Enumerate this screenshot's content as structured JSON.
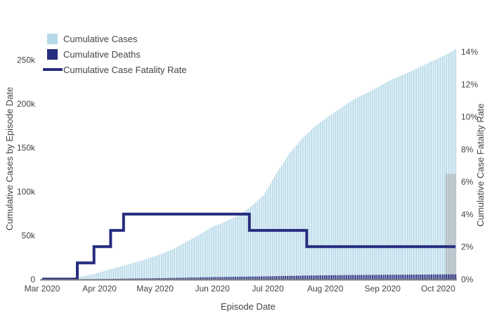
{
  "legend": {
    "items": [
      {
        "label": "Cumulative Cases",
        "swatch": "square",
        "color": "#B6D9E8"
      },
      {
        "label": "Cumulative Deaths",
        "swatch": "square",
        "color": "#262C7E"
      },
      {
        "label": "Cumulative Case Fatality Rate",
        "swatch": "line",
        "color": "#262C7E"
      }
    ]
  },
  "colors": {
    "cases_bar": "#B6D9E8",
    "deaths_bar": "#262C7E",
    "cfr_line": "#262C7E",
    "incomplete_bar": "#ACACAC",
    "axis_line": "#7F7F7F",
    "text": "#444444"
  },
  "chart_data": {
    "type": "bar",
    "title": "",
    "x_axis": {
      "title": "Episode Date",
      "tick_labels": [
        "Mar 2020",
        "Apr 2020",
        "May 2020",
        "Jun 2020",
        "Jul 2020",
        "Aug 2020",
        "Sep 2020",
        "Oct 2020"
      ],
      "tick_dates": [
        "2020-03-01",
        "2020-04-01",
        "2020-05-01",
        "2020-06-01",
        "2020-07-01",
        "2020-08-01",
        "2020-09-01",
        "2020-10-01"
      ],
      "start_date": "2020-03-01",
      "end_date": "2020-10-10",
      "grid": false
    },
    "y_axis_left": {
      "title": "Cumulative Cases by Episode Date",
      "tick_labels": [
        "0",
        "50k",
        "100k",
        "150k",
        "200k",
        "250k"
      ],
      "tick_values": [
        0,
        50000,
        100000,
        150000,
        200000,
        250000
      ],
      "range": [
        0,
        274000
      ]
    },
    "y_axis_right": {
      "title": "Cumulative Case Fatality Rate",
      "tick_labels": [
        "0%",
        "2%",
        "4%",
        "6%",
        "8%",
        "10%",
        "12%",
        "14%"
      ],
      "tick_values": [
        0,
        2,
        4,
        6,
        8,
        10,
        12,
        14
      ],
      "range": [
        0,
        14.8
      ]
    },
    "series": [
      {
        "name": "Cumulative Cases",
        "type": "bar",
        "axis": "left",
        "color": "#B6D9E8",
        "points": [
          [
            "2020-03-01",
            100
          ],
          [
            "2020-03-08",
            400
          ],
          [
            "2020-03-15",
            1200
          ],
          [
            "2020-03-22",
            3200
          ],
          [
            "2020-03-29",
            6000
          ],
          [
            "2020-04-05",
            10500
          ],
          [
            "2020-04-12",
            14500
          ],
          [
            "2020-04-19",
            18500
          ],
          [
            "2020-04-26",
            23000
          ],
          [
            "2020-05-03",
            28000
          ],
          [
            "2020-05-10",
            34000
          ],
          [
            "2020-05-17",
            42000
          ],
          [
            "2020-05-24",
            50000
          ],
          [
            "2020-05-31",
            59000
          ],
          [
            "2020-06-07",
            65000
          ],
          [
            "2020-06-14",
            72000
          ],
          [
            "2020-06-21",
            82000
          ],
          [
            "2020-06-28",
            95000
          ],
          [
            "2020-07-05",
            120000
          ],
          [
            "2020-07-12",
            143000
          ],
          [
            "2020-07-19",
            160000
          ],
          [
            "2020-07-26",
            174000
          ],
          [
            "2020-08-02",
            185000
          ],
          [
            "2020-08-09",
            195000
          ],
          [
            "2020-08-16",
            205000
          ],
          [
            "2020-08-23",
            212000
          ],
          [
            "2020-08-30",
            220000
          ],
          [
            "2020-09-06",
            228000
          ],
          [
            "2020-09-13",
            234000
          ],
          [
            "2020-09-20",
            241000
          ],
          [
            "2020-09-27",
            248000
          ],
          [
            "2020-10-04",
            255000
          ],
          [
            "2020-10-10",
            262000
          ]
        ]
      },
      {
        "name": "Cumulative Deaths",
        "type": "bar",
        "axis": "left",
        "color": "#262C7E",
        "points": [
          [
            "2020-03-01",
            0
          ],
          [
            "2020-03-08",
            2
          ],
          [
            "2020-03-15",
            10
          ],
          [
            "2020-03-22",
            40
          ],
          [
            "2020-03-29",
            120
          ],
          [
            "2020-04-05",
            280
          ],
          [
            "2020-04-12",
            520
          ],
          [
            "2020-04-19",
            750
          ],
          [
            "2020-04-26",
            950
          ],
          [
            "2020-05-03",
            1150
          ],
          [
            "2020-05-10",
            1400
          ],
          [
            "2020-05-17",
            1700
          ],
          [
            "2020-05-24",
            2000
          ],
          [
            "2020-05-31",
            2300
          ],
          [
            "2020-06-07",
            2500
          ],
          [
            "2020-06-14",
            2700
          ],
          [
            "2020-06-21",
            2900
          ],
          [
            "2020-06-28",
            3100
          ],
          [
            "2020-07-05",
            3400
          ],
          [
            "2020-07-12",
            3700
          ],
          [
            "2020-07-19",
            4000
          ],
          [
            "2020-07-26",
            4200
          ],
          [
            "2020-08-02",
            4400
          ],
          [
            "2020-08-09",
            4550
          ],
          [
            "2020-08-16",
            4700
          ],
          [
            "2020-08-23",
            4800
          ],
          [
            "2020-08-30",
            4900
          ],
          [
            "2020-09-06",
            5000
          ],
          [
            "2020-09-13",
            5100
          ],
          [
            "2020-09-20",
            5200
          ],
          [
            "2020-09-27",
            5300
          ],
          [
            "2020-10-04",
            5400
          ],
          [
            "2020-10-10",
            5500
          ]
        ]
      },
      {
        "name": "Cumulative Case Fatality Rate",
        "type": "step-line",
        "axis": "right",
        "color": "#262C7E",
        "steps": [
          {
            "until": "2020-03-20",
            "rate_pct": 0
          },
          {
            "until": "2020-03-29",
            "rate_pct": 1
          },
          {
            "until": "2020-04-07",
            "rate_pct": 2
          },
          {
            "until": "2020-04-14",
            "rate_pct": 3
          },
          {
            "until": "2020-06-21",
            "rate_pct": 4
          },
          {
            "until": "2020-07-22",
            "rate_pct": 3
          },
          {
            "until": "2020-10-10",
            "rate_pct": 2
          }
        ]
      }
    ],
    "incomplete_recent_bar": {
      "approx_value": 120000,
      "color": "#ACACAC",
      "opacity": 0.5
    }
  }
}
